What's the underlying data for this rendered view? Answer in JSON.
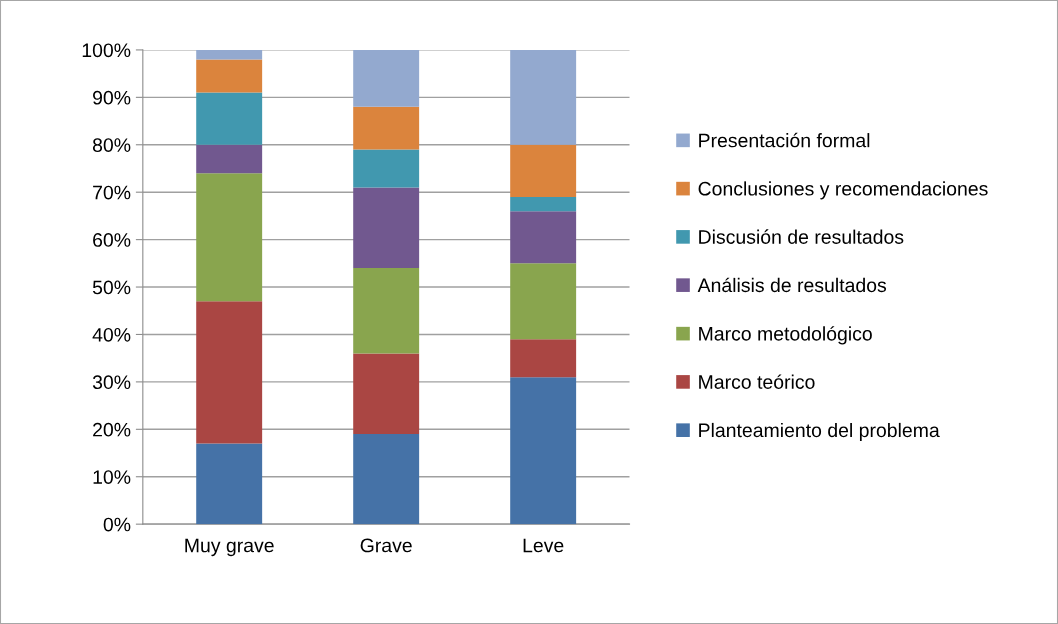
{
  "chart_data": {
    "type": "bar",
    "stacked": true,
    "categories": [
      "Muy grave",
      "Grave",
      "Leve"
    ],
    "series": [
      {
        "name": "Planteamiento del problema",
        "color": "#4572a7",
        "values": [
          17,
          19,
          31
        ]
      },
      {
        "name": "Marco teórico",
        "color": "#aa4643",
        "values": [
          30,
          17,
          8
        ]
      },
      {
        "name": "Marco metodológico",
        "color": "#89a54e",
        "values": [
          27,
          18,
          16
        ]
      },
      {
        "name": "Análisis de resultados",
        "color": "#71588f",
        "values": [
          6,
          17,
          11
        ]
      },
      {
        "name": "Discusión de resultados",
        "color": "#4198af",
        "values": [
          11,
          8,
          3
        ]
      },
      {
        "name": "Conclusiones y recomendaciones",
        "color": "#db843d",
        "values": [
          7,
          9,
          11
        ]
      },
      {
        "name": "Presentación formal",
        "color": "#93a9cf",
        "values": [
          2,
          12,
          20
        ]
      }
    ],
    "ylim": [
      0,
      100
    ],
    "yticks": [
      {
        "value": 0,
        "label": "0%"
      },
      {
        "value": 10,
        "label": "10%"
      },
      {
        "value": 20,
        "label": "20%"
      },
      {
        "value": 30,
        "label": "30%"
      },
      {
        "value": 40,
        "label": "40%"
      },
      {
        "value": 50,
        "label": "50%"
      },
      {
        "value": 60,
        "label": "60%"
      },
      {
        "value": 70,
        "label": "70%"
      },
      {
        "value": 80,
        "label": "80%"
      },
      {
        "value": 90,
        "label": "90%"
      },
      {
        "value": 100,
        "label": "100%"
      }
    ],
    "grid": "y",
    "legend": "right"
  }
}
